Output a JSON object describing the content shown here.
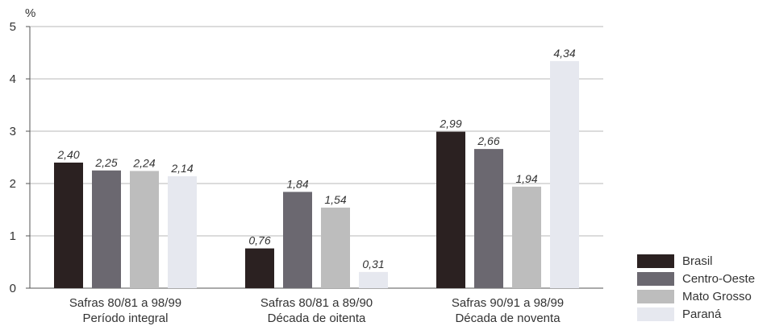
{
  "chart_data": {
    "type": "bar",
    "ylabel": "%",
    "ylim": [
      0,
      5
    ],
    "yticks": [
      0,
      1,
      2,
      3,
      4,
      5
    ],
    "grid": true,
    "legend_position": "bottom-right",
    "categories": [
      [
        "Safras 80/81 a 98/99",
        "Período integral"
      ],
      [
        "Safras 80/81 a 89/90",
        "Década de oitenta"
      ],
      [
        "Safras 90/91 a 98/99",
        "Década de noventa"
      ]
    ],
    "series": [
      {
        "name": "Brasil",
        "color": "#2b2121",
        "values": [
          2.4,
          0.76,
          2.99
        ],
        "labels": [
          "2,40",
          "0,76",
          "2,99"
        ]
      },
      {
        "name": "Centro-Oeste",
        "color": "#6b6870",
        "values": [
          2.25,
          1.84,
          2.66
        ],
        "labels": [
          "2,25",
          "1,84",
          "2,66"
        ]
      },
      {
        "name": "Mato Grosso",
        "color": "#bdbdbd",
        "values": [
          2.24,
          1.54,
          1.94
        ],
        "labels": [
          "2,24",
          "1,54",
          "1,94"
        ]
      },
      {
        "name": "Paraná",
        "color": "#e6e8ef",
        "values": [
          2.14,
          0.31,
          4.34
        ],
        "labels": [
          "2,14",
          "0,31",
          "4,34"
        ]
      }
    ]
  }
}
